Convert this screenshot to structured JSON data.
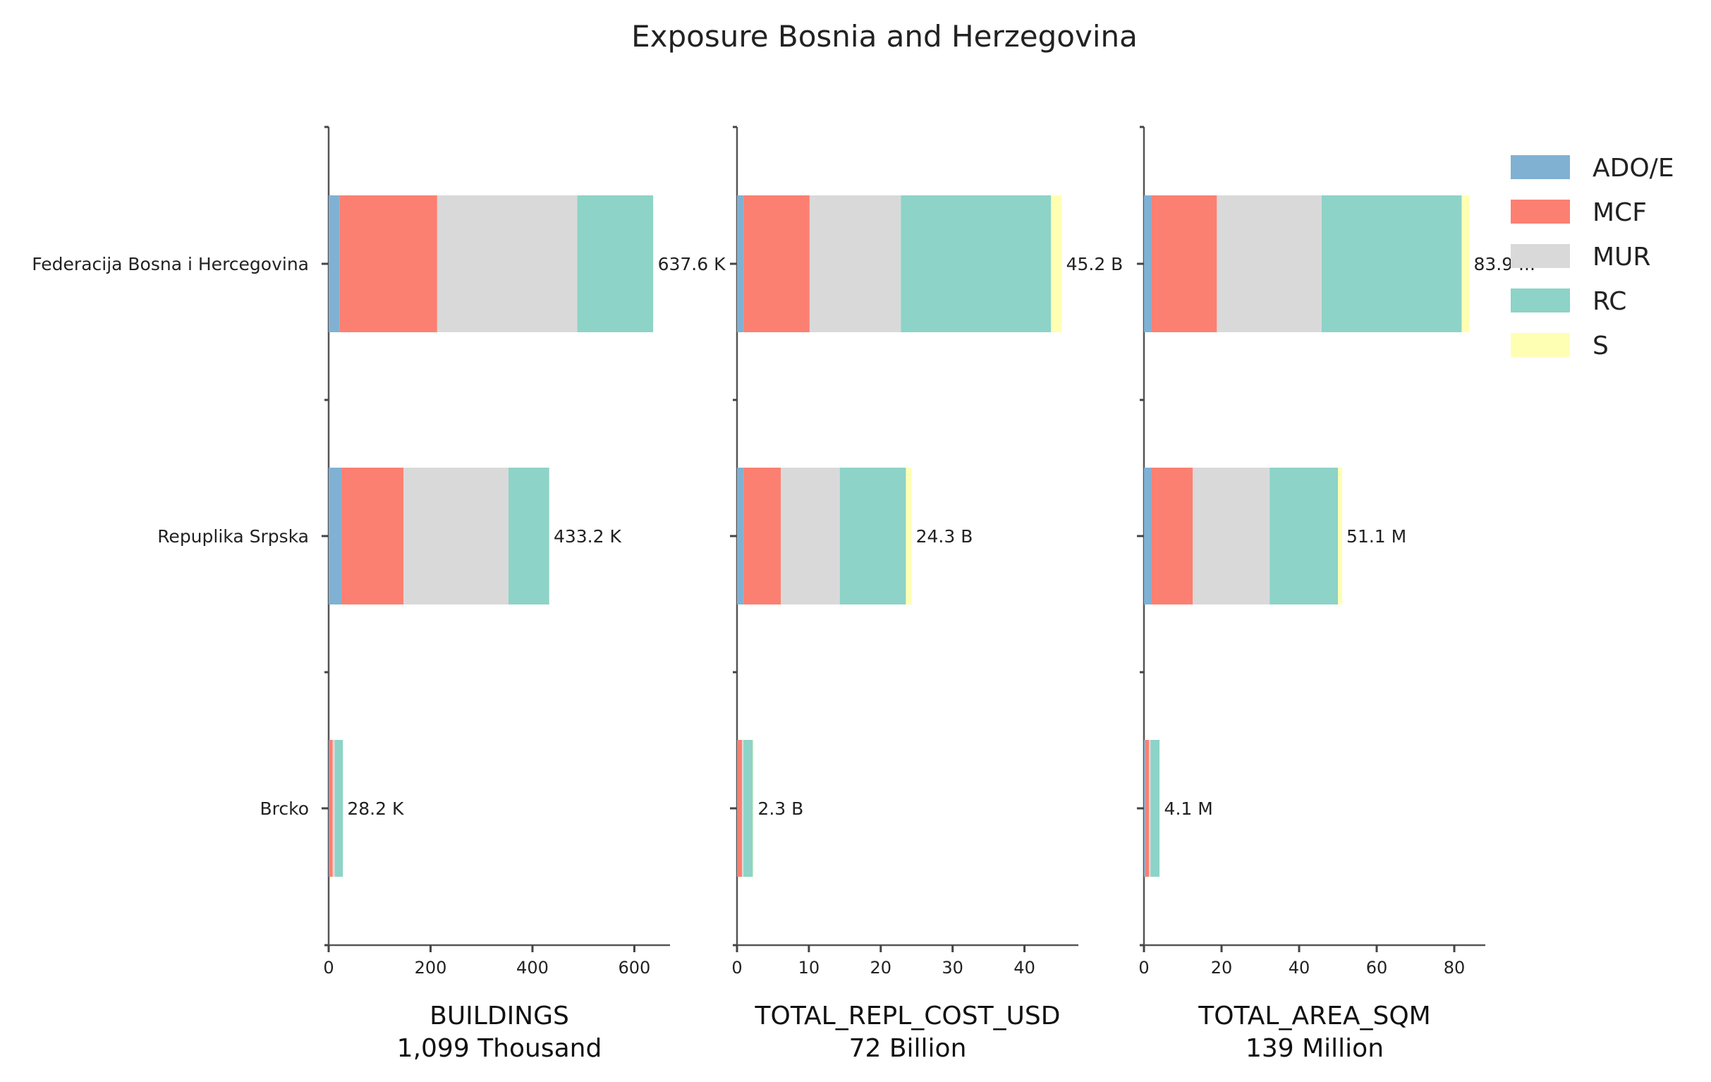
{
  "chart_data": {
    "type": "bar",
    "orientation": "horizontal",
    "stacked": true,
    "title": "Exposure Bosnia and Herzegovina",
    "categories": [
      "Federacija Bosna i Hercegovina",
      "Repuplika Srpska",
      "Brcko"
    ],
    "series_names": [
      "ADO/E",
      "MCF",
      "MUR",
      "RC",
      "S"
    ],
    "colors": [
      "#80b1d3",
      "#fb8072",
      "#d9d9d9",
      "#8dd3c7",
      "#ffffb3"
    ],
    "legend_position": "top-right",
    "grid": false,
    "panels": [
      {
        "id": "buildings",
        "xlabel": "BUILDINGS",
        "subtitle": "1,099 Thousand",
        "xlim": [
          0,
          670
        ],
        "ticks": [
          0,
          200,
          400,
          600
        ],
        "values": [
          [
            22,
            191,
            275,
            149,
            0.6
          ],
          [
            25,
            122,
            206,
            80,
            0.2
          ],
          [
            1,
            7,
            4,
            16,
            0.2
          ]
        ],
        "totals": [
          "637.6 K",
          "433.2 K",
          "28.2 K"
        ]
      },
      {
        "id": "total_repl_cost",
        "xlabel": "TOTAL_REPL_COST_USD",
        "subtitle": "72 Billion",
        "xlim": [
          0,
          47.5
        ],
        "ticks": [
          0,
          10,
          20,
          30,
          40
        ],
        "values": [
          [
            0.9,
            9.2,
            12.7,
            20.9,
            1.5
          ],
          [
            0.9,
            5.2,
            8.2,
            9.2,
            0.8
          ],
          [
            0.1,
            0.6,
            0.2,
            1.3,
            0.1
          ]
        ],
        "totals": [
          "45.2 B",
          "24.3 B",
          "2.3 B"
        ]
      },
      {
        "id": "total_area_sqm",
        "xlabel": "TOTAL_AREA_SQM",
        "subtitle": "139 Million",
        "xlim": [
          0,
          88
        ],
        "ticks": [
          0,
          20,
          40,
          60,
          80
        ],
        "values": [
          [
            2.0,
            16.8,
            27.0,
            36.1,
            2.0
          ],
          [
            2.0,
            10.6,
            19.8,
            17.6,
            1.1
          ],
          [
            0.3,
            1.0,
            0.4,
            2.3,
            0.1
          ]
        ],
        "totals": [
          "83.9 ...",
          "51.1 M",
          "4.1 M"
        ]
      }
    ]
  }
}
